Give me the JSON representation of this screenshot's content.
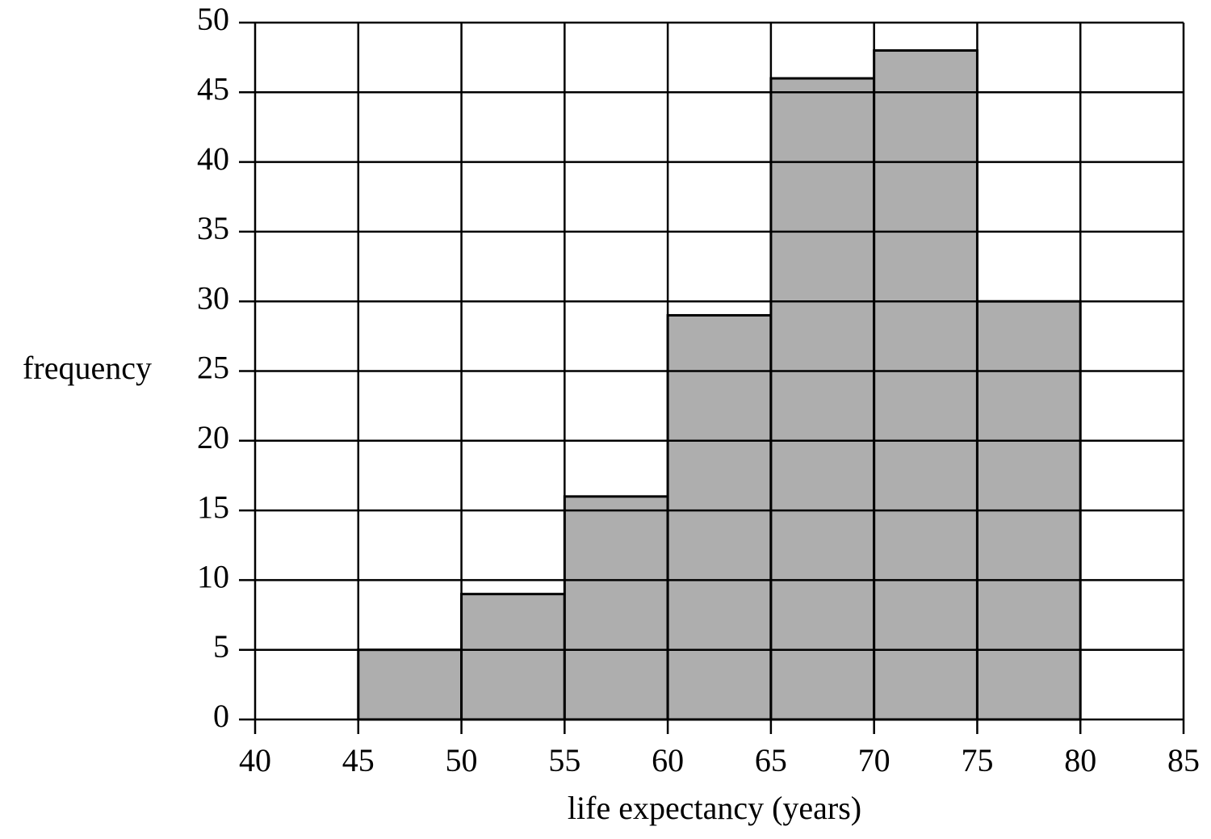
{
  "chart_data": {
    "type": "histogram",
    "xlabel": "life expectancy (years)",
    "ylabel": "frequency",
    "bins": [
      45,
      50,
      55,
      60,
      65,
      70,
      75,
      80
    ],
    "values": [
      5,
      9,
      16,
      29,
      46,
      48,
      30
    ],
    "color": "#aeaeae",
    "xlim": [
      40,
      85
    ],
    "xticks": [
      40,
      45,
      50,
      55,
      60,
      65,
      70,
      75,
      80,
      85
    ],
    "ylim": [
      0,
      50
    ],
    "yticks": [
      0,
      5,
      10,
      15,
      20,
      25,
      30,
      35,
      40,
      45,
      50
    ],
    "grid": true
  }
}
